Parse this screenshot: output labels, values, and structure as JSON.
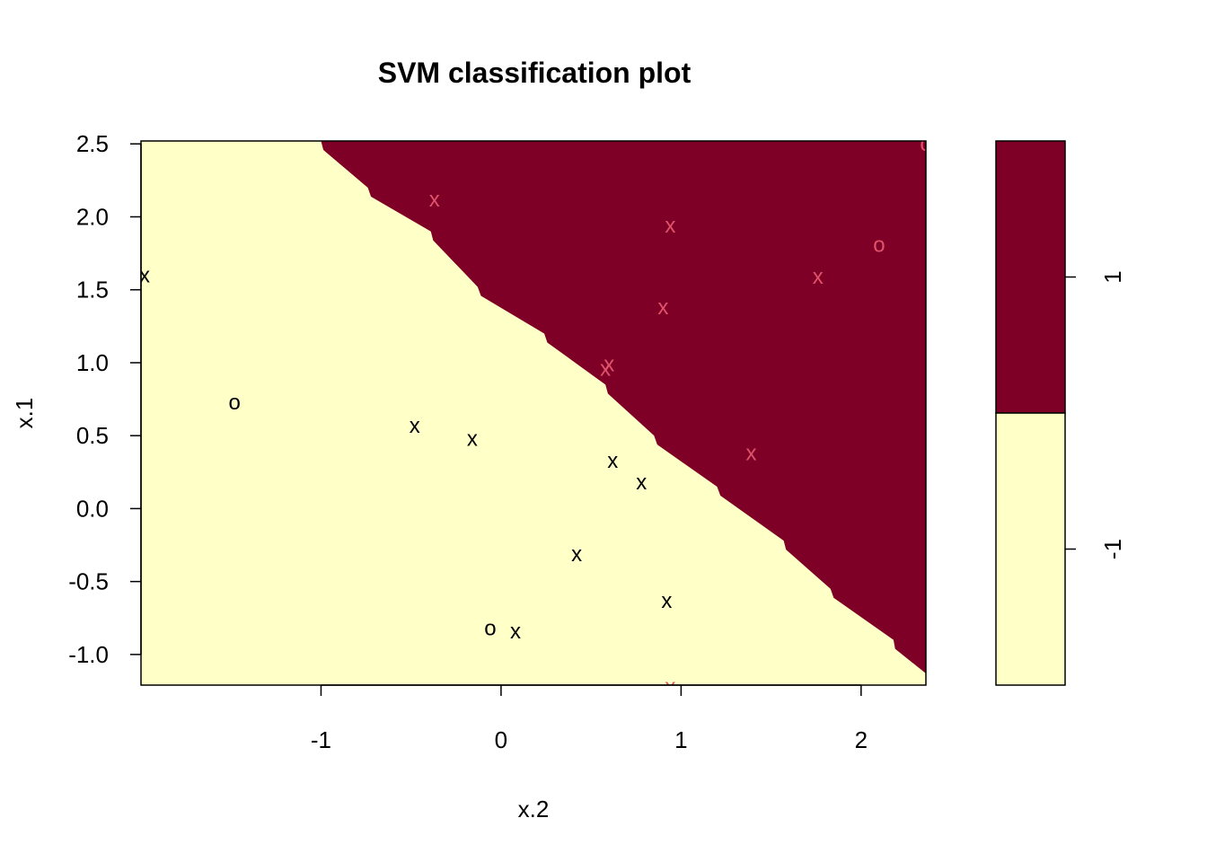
{
  "chart_data": {
    "type": "scatter",
    "title": "SVM classification plot",
    "xlabel": "x.2",
    "ylabel": "x.1",
    "xlim": [
      -2.0,
      2.36
    ],
    "ylim": [
      -1.21,
      2.52
    ],
    "x_ticks": [
      -1,
      0,
      1,
      2
    ],
    "x_tick_labels": [
      "-1",
      "0",
      "1",
      "2"
    ],
    "y_ticks": [
      -1.0,
      -0.5,
      0.0,
      0.5,
      1.0,
      1.5,
      2.0,
      2.5
    ],
    "y_tick_labels": [
      "-1.0",
      "-0.5",
      "0.0",
      "0.5",
      "1.0",
      "1.5",
      "2.0",
      "2.5"
    ],
    "classes": [
      {
        "label": "1",
        "fill": "#7f0026",
        "marker_color": "#df536b"
      },
      {
        "label": "-1",
        "fill": "#ffffc8",
        "marker_color": "#000000"
      }
    ],
    "legend": {
      "labels": [
        "1",
        "-1"
      ],
      "colors": [
        "#7f0026",
        "#ffffc8"
      ]
    },
    "boundary": [
      [
        -1.0,
        2.52
      ],
      [
        -0.74,
        2.2
      ],
      [
        -0.39,
        1.9
      ],
      [
        -0.13,
        1.52
      ],
      [
        0.24,
        1.2
      ],
      [
        0.58,
        0.85
      ],
      [
        0.85,
        0.5
      ],
      [
        1.2,
        0.15
      ],
      [
        1.57,
        -0.22
      ],
      [
        1.83,
        -0.55
      ],
      [
        2.18,
        -0.9
      ],
      [
        2.36,
        -1.13
      ]
    ],
    "points": [
      {
        "x": -1.98,
        "y": 1.6,
        "symbol": "x",
        "class": "-1"
      },
      {
        "x": -1.48,
        "y": 0.73,
        "symbol": "o",
        "class": "-1"
      },
      {
        "x": -0.48,
        "y": 0.57,
        "symbol": "x",
        "class": "-1"
      },
      {
        "x": -0.16,
        "y": 0.48,
        "symbol": "x",
        "class": "-1"
      },
      {
        "x": 0.62,
        "y": 0.33,
        "symbol": "x",
        "class": "-1"
      },
      {
        "x": 0.78,
        "y": 0.18,
        "symbol": "x",
        "class": "-1"
      },
      {
        "x": 0.42,
        "y": -0.31,
        "symbol": "x",
        "class": "-1"
      },
      {
        "x": 0.92,
        "y": -0.63,
        "symbol": "x",
        "class": "-1"
      },
      {
        "x": -0.06,
        "y": -0.82,
        "symbol": "o",
        "class": "-1"
      },
      {
        "x": 0.08,
        "y": -0.84,
        "symbol": "x",
        "class": "-1"
      },
      {
        "x": -0.37,
        "y": 2.12,
        "symbol": "x",
        "class": "1"
      },
      {
        "x": 0.94,
        "y": 1.94,
        "symbol": "x",
        "class": "1"
      },
      {
        "x": 2.1,
        "y": 1.81,
        "symbol": "o",
        "class": "1"
      },
      {
        "x": 1.76,
        "y": 1.59,
        "symbol": "x",
        "class": "1"
      },
      {
        "x": 0.9,
        "y": 1.38,
        "symbol": "x",
        "class": "1"
      },
      {
        "x": 0.6,
        "y": 0.99,
        "symbol": "x",
        "class": "1"
      },
      {
        "x": 0.58,
        "y": 0.96,
        "symbol": "x",
        "class": "1"
      },
      {
        "x": 1.39,
        "y": 0.38,
        "symbol": "x",
        "class": "1"
      },
      {
        "x": 0.94,
        "y": -1.22,
        "symbol": "x",
        "class": "1"
      },
      {
        "x": 2.36,
        "y": 2.5,
        "symbol": "o",
        "class": "1"
      }
    ]
  }
}
